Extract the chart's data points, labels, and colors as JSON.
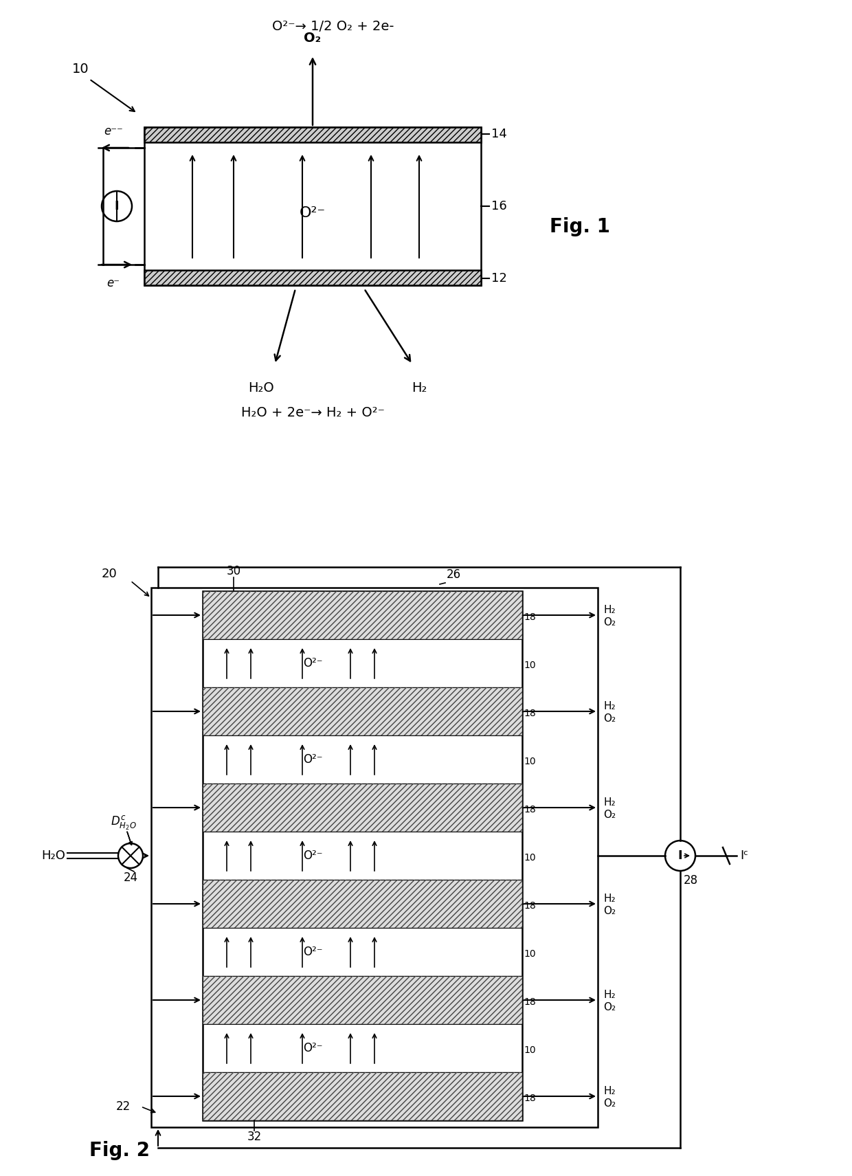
{
  "fig1": {
    "label": "10",
    "reaction_top": "O²⁻ → 1/2 O₂ + 2e-",
    "o2_label": "O₂",
    "label_14": "14",
    "label_16": "16",
    "label_12": "12",
    "fig_label": "Fig. 1",
    "e_minus_top": "e⁻⁻",
    "e_minus_bot": "e⁻",
    "reaction_bot": "H₂O + 2e⁻→ H₂ + O²⁻",
    "h2o_label": "H₂O",
    "h2_label": "H₂"
  },
  "fig2": {
    "label": "20",
    "label_30": "30",
    "label_32": "32",
    "label_22": "22",
    "label_24": "24",
    "label_28": "28",
    "label_26": "26",
    "label_18": "18",
    "label_10": "10",
    "h2o_label": "H₂O",
    "dh2o_label": "Dᶜ₂O",
    "ic_label": "Iᶜ",
    "i_label": "I",
    "fig_label": "Fig. 2",
    "h2_label": "H₂",
    "o2_label": "O₂"
  },
  "bg_color": "#ffffff",
  "line_color": "#000000"
}
